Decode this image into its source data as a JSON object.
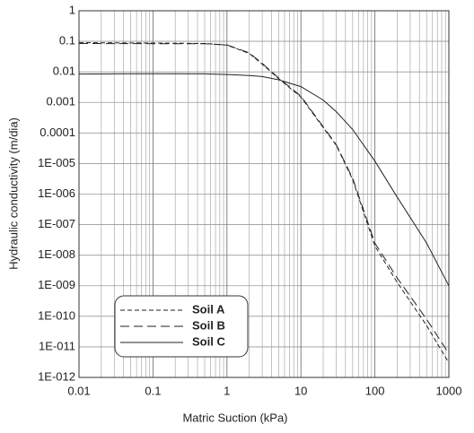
{
  "chart_data": {
    "type": "line",
    "x_label": "Matric Suction (kPa)",
    "y_label": "Hydraulic conductivity (m/dia)",
    "x_log": true,
    "y_log": true,
    "grid": true,
    "x_minor_grid": true,
    "legend": "lower-left",
    "xlim": [
      0.01,
      1000
    ],
    "xticks": [
      0.01,
      0.1,
      1,
      10,
      100,
      1000
    ],
    "ylim": [
      1e-12,
      1
    ],
    "yticks": [
      1,
      0.1,
      0.01,
      0.001,
      0.0001,
      {
        "value": 1e-05,
        "label": "1E-005"
      },
      {
        "value": 1e-06,
        "label": "1E-006"
      },
      {
        "value": 1e-07,
        "label": "1E-007"
      },
      {
        "value": 1e-08,
        "label": "1E-008"
      },
      {
        "value": 1e-09,
        "label": "1E-009"
      },
      {
        "value": 1e-10,
        "label": "1E-010"
      },
      {
        "value": 1e-11,
        "label": "1E-011"
      },
      {
        "value": 1e-12,
        "label": "1E-012"
      }
    ],
    "x": [
      0.01,
      0.1,
      0.5,
      1,
      2,
      3,
      5,
      10,
      20,
      30,
      50,
      100,
      200,
      500,
      1000
    ],
    "series": [
      {
        "name": "Soil A",
        "color": "#222222",
        "line_style": "short-dash",
        "values": [
          0.09,
          0.088,
          0.085,
          0.075,
          0.04,
          0.018,
          0.006,
          0.0015,
          0.00015,
          4e-05,
          3e-06,
          2e-08,
          1.3e-09,
          5e-11,
          3e-12
        ]
      },
      {
        "name": "Soil B",
        "color": "#222222",
        "line_style": "long-dash",
        "values": [
          0.085,
          0.084,
          0.083,
          0.076,
          0.042,
          0.019,
          0.0063,
          0.0016,
          0.00016,
          4.2e-05,
          3.3e-06,
          2.5e-08,
          1.8e-09,
          8e-11,
          6e-12
        ]
      },
      {
        "name": "Soil C",
        "color": "#222222",
        "line_style": "solid",
        "values": [
          0.0085,
          0.0087,
          0.0086,
          0.0082,
          0.0076,
          0.007,
          0.0055,
          0.0033,
          0.0012,
          0.0005,
          0.00013,
          1.2e-05,
          8e-07,
          2.5e-08,
          1e-09
        ]
      }
    ]
  }
}
